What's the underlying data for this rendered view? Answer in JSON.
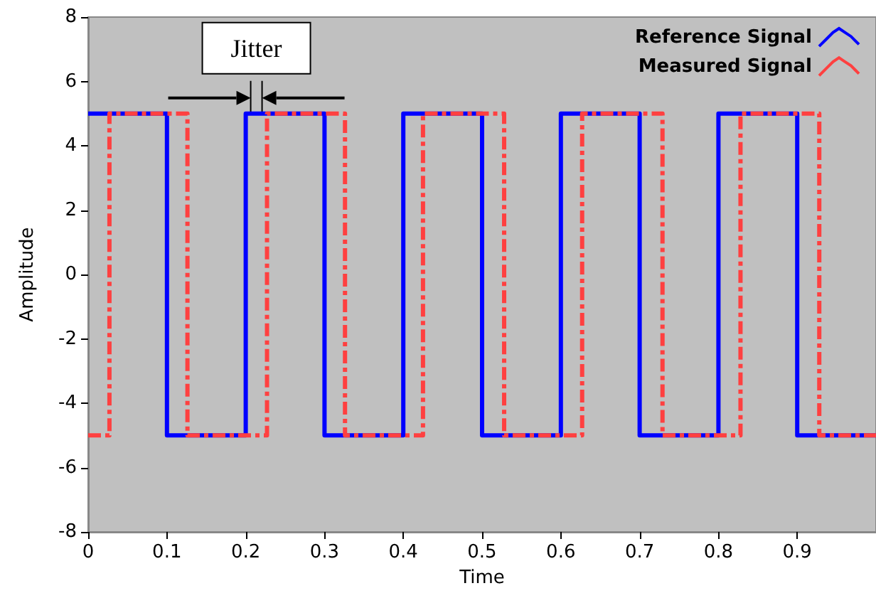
{
  "chart_data": {
    "type": "step",
    "xlabel": "Time",
    "ylabel": "Amplitude",
    "annotations": [
      {
        "text": "Jitter",
        "x": 0.2,
        "y": 5
      }
    ],
    "series": [
      {
        "name": "Reference Signal",
        "color": "#0000ff",
        "line_style": "solid",
        "x": [
          0,
          0.1,
          0.2,
          0.3,
          0.4,
          0.5,
          0.6,
          0.7,
          0.8,
          0.9,
          1.0
        ],
        "values": [
          5,
          -5,
          5,
          -5,
          5,
          -5,
          5,
          -5,
          5,
          -5,
          -5
        ]
      },
      {
        "name": "Measured Signal",
        "color": "#ff4040",
        "line_style": "dashed",
        "x": [
          0,
          0.027,
          0.126,
          0.227,
          0.326,
          0.425,
          0.528,
          0.627,
          0.729,
          0.828,
          0.928,
          1.0
        ],
        "values": [
          -5,
          5,
          -5,
          5,
          -5,
          5,
          -5,
          5,
          -5,
          5,
          -5,
          -5
        ]
      }
    ],
    "xlim": [
      0,
      1.0
    ],
    "xticks": [
      0,
      0.1,
      0.2,
      0.3,
      0.4,
      0.5,
      0.6,
      0.7,
      0.8,
      0.9
    ],
    "ylim": [
      -8,
      8
    ],
    "yticks": [
      -8,
      -6,
      -4,
      -2,
      0,
      2,
      4,
      6,
      8
    ],
    "grid": false,
    "legend": "top right",
    "marker": "none"
  }
}
